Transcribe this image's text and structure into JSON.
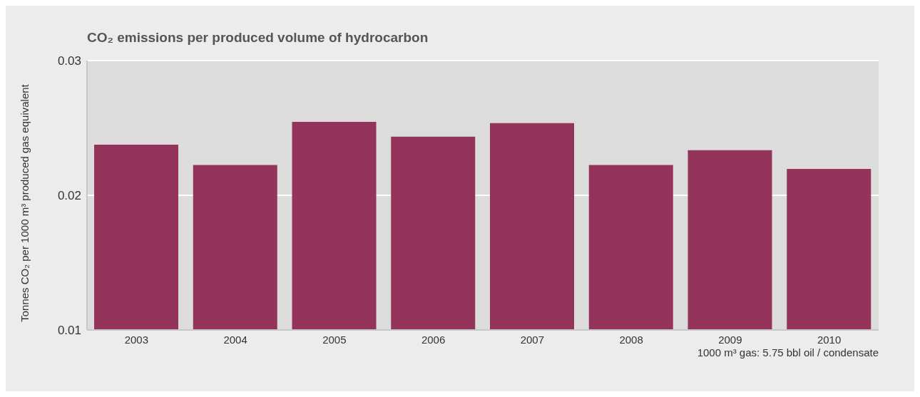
{
  "chart_data": {
    "type": "bar",
    "title": "CO₂ emissions per produced volume of hydrocarbon",
    "ylabel": "Tonnes CO₂ per 1000 m³ produced gas equivalent",
    "annotations": [
      "1000 m³ gas: 5.75 bbl oil / condensate"
    ],
    "categories": [
      "2003",
      "2004",
      "2005",
      "2006",
      "2007",
      "2008",
      "2009",
      "2010"
    ],
    "values": [
      0.0237,
      0.0222,
      0.0254,
      0.0243,
      0.0253,
      0.0222,
      0.0233,
      0.0219
    ],
    "color": "#94345a",
    "ylim": [
      0.01,
      0.03
    ],
    "yticks": [
      0.01,
      0.02,
      0.03
    ],
    "grid": "y"
  }
}
